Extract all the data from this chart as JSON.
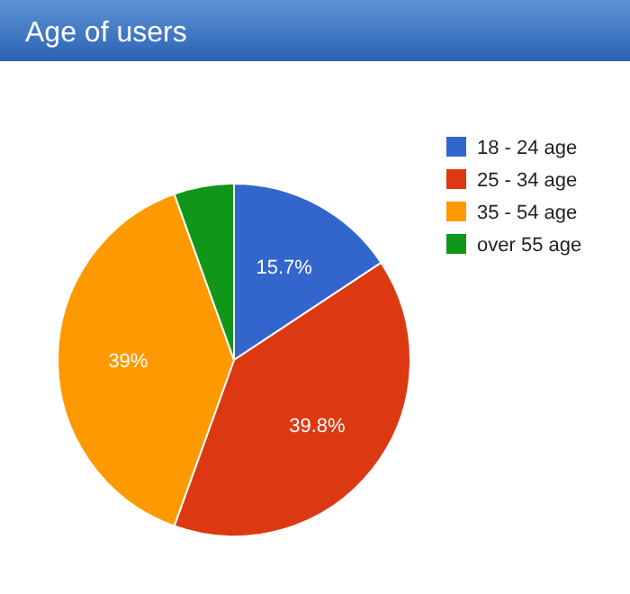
{
  "chart_data": {
    "type": "pie",
    "title": "Age of users",
    "categories": [
      "18 - 24 age",
      "25 - 34 age",
      "35 - 54 age",
      "over 55 age"
    ],
    "values": [
      15.7,
      39.8,
      39,
      5.5
    ],
    "colors": [
      "#3366cc",
      "#dc3912",
      "#ff9900",
      "#109618"
    ],
    "value_labels": [
      "15.7%",
      "39.8%",
      "39%",
      null
    ],
    "legend": "top right"
  }
}
